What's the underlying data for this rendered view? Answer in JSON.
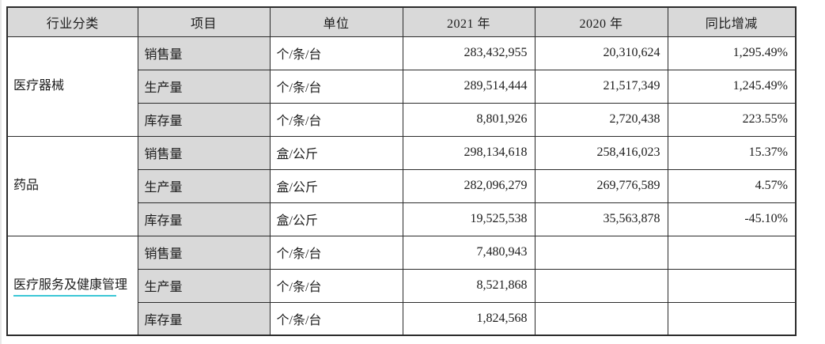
{
  "table": {
    "headers": [
      "行业分类",
      "项目",
      "单位",
      "2021 年",
      "2020 年",
      "同比增减"
    ],
    "groups": [
      {
        "industry": "医疗器械",
        "underline": false,
        "rows": [
          {
            "item": "销售量",
            "unit": "个/条/台",
            "y2021": "283,432,955",
            "y2020": "20,310,624",
            "yoy": "1,295.49%"
          },
          {
            "item": "生产量",
            "unit": "个/条/台",
            "y2021": "289,514,444",
            "y2020": "21,517,349",
            "yoy": "1,245.49%"
          },
          {
            "item": "库存量",
            "unit": "个/条/台",
            "y2021": "8,801,926",
            "y2020": "2,720,438",
            "yoy": "223.55%"
          }
        ]
      },
      {
        "industry": "药品",
        "underline": false,
        "rows": [
          {
            "item": "销售量",
            "unit": "盒/公斤",
            "y2021": "298,134,618",
            "y2020": "258,416,023",
            "yoy": "15.37%"
          },
          {
            "item": "生产量",
            "unit": "盒/公斤",
            "y2021": "282,096,279",
            "y2020": "269,776,589",
            "yoy": "4.57%"
          },
          {
            "item": "库存量",
            "unit": "盒/公斤",
            "y2021": "19,525,538",
            "y2020": "35,563,878",
            "yoy": "-45.10%"
          }
        ]
      },
      {
        "industry": "医疗服务及健康管理",
        "underline": true,
        "rows": [
          {
            "item": "销售量",
            "unit": "个/条/台",
            "y2021": "7,480,943",
            "y2020": "",
            "yoy": ""
          },
          {
            "item": "生产量",
            "unit": "个/条/台",
            "y2021": "8,521,868",
            "y2020": "",
            "yoy": ""
          },
          {
            "item": "库存量",
            "unit": "个/条/台",
            "y2021": "1,824,568",
            "y2020": "",
            "yoy": ""
          }
        ]
      }
    ]
  },
  "colors": {
    "header_bg": "#d9d9d9",
    "item_column_bg": "#d9d9d9",
    "border": "#2b2b2b",
    "proofing_underline": "#3cc7d6"
  }
}
